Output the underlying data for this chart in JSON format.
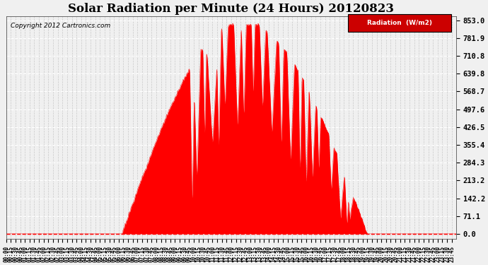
{
  "title": "Solar Radiation per Minute (24 Hours) 20120823",
  "copyright_text": "Copyright 2012 Cartronics.com",
  "legend_label": "Radiation  (W/m2)",
  "yticks": [
    0.0,
    71.1,
    142.2,
    213.2,
    284.3,
    355.4,
    426.5,
    497.6,
    568.7,
    639.8,
    710.8,
    781.9,
    853.0
  ],
  "ymax": 853.0,
  "fill_color": "#ff0000",
  "line_color": "#ff0000",
  "bg_color": "#f0f0f0",
  "plot_bg_color": "#f0f0f0",
  "grid_color_h": "#ffffff",
  "grid_color_v": "#c8c8c8",
  "dashed_line_color": "#ff0000",
  "legend_bg": "#cc0000",
  "legend_text_color": "#ffffff",
  "title_fontsize": 12,
  "axis_fontsize": 7.5,
  "xtick_interval_minutes": 15,
  "total_minutes": 1440,
  "rise_minute": 370,
  "set_minute": 1155,
  "peak_minute": 755,
  "peak_value": 853.0
}
